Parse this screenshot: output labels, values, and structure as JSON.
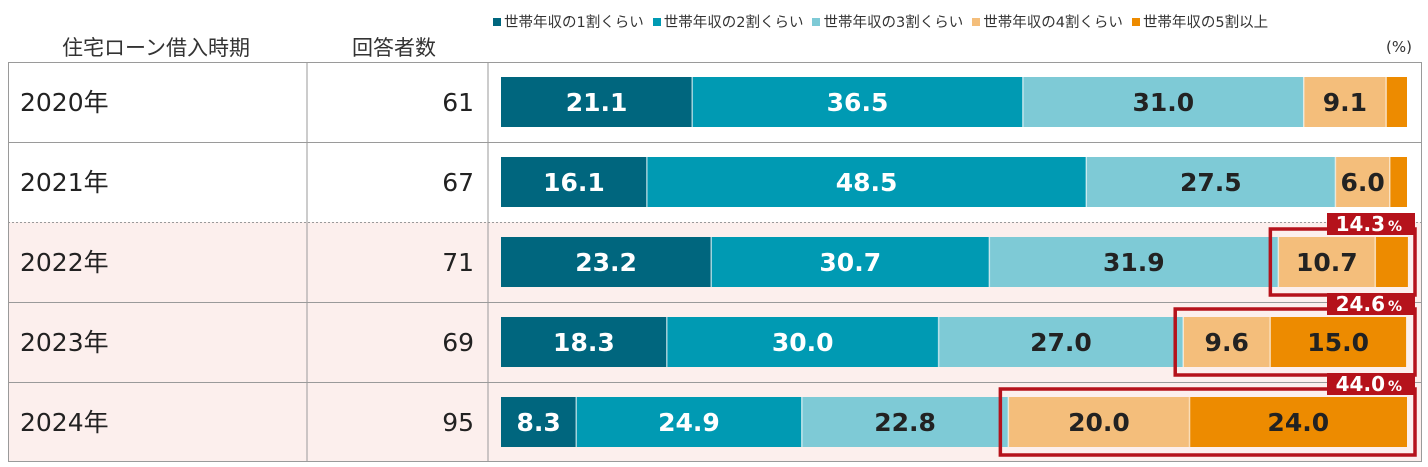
{
  "header": {
    "period_label": "住宅ローン借入時期",
    "count_label": "回答者数",
    "unit": "(%)"
  },
  "colors": {
    "series": [
      "#00667e",
      "#009ab3",
      "#7ecad6",
      "#f4be7b",
      "#ed8b00"
    ],
    "highlight_row_bg": "#fcefed",
    "highlight_box": "#b5121b",
    "grid_line": "#9a9a9a"
  },
  "chart_data": {
    "type": "bar",
    "orientation": "horizontal",
    "stacked": true,
    "categories": [
      "2020年",
      "2021年",
      "2022年",
      "2023年",
      "2024年"
    ],
    "respondents": [
      "61",
      "67",
      "71",
      "69",
      "95"
    ],
    "series": [
      {
        "name": "世帯年収の1割くらい",
        "values": [
          21.1,
          16.1,
          23.2,
          18.3,
          8.3
        ]
      },
      {
        "name": "世帯年収の2割くらい",
        "values": [
          36.5,
          48.5,
          30.7,
          30.0,
          24.9
        ]
      },
      {
        "name": "世帯年収の3割くらい",
        "values": [
          31.0,
          27.5,
          31.9,
          27.0,
          22.8
        ]
      },
      {
        "name": "世帯年収の4割くらい",
        "values": [
          9.1,
          6.0,
          10.7,
          9.6,
          20.0
        ]
      },
      {
        "name": "世帯年収の5割以上",
        "values": [
          2.3,
          1.9,
          3.6,
          15.0,
          24.0
        ]
      }
    ],
    "data_labels": [
      [
        "21.1",
        "36.5",
        "31.0",
        "9.1",
        ""
      ],
      [
        "16.1",
        "48.5",
        "27.5",
        "6.0",
        ""
      ],
      [
        "23.2",
        "30.7",
        "31.9",
        "10.7",
        ""
      ],
      [
        "18.3",
        "30.0",
        "27.0",
        "9.6",
        "15.0"
      ],
      [
        "8.3",
        "24.9",
        "22.8",
        "20.0",
        "24.0"
      ]
    ],
    "highlighted_rows": [
      2,
      3,
      4
    ],
    "annotations": [
      {
        "row": 2,
        "text": "14.3",
        "suffix": "%",
        "from_series": 3
      },
      {
        "row": 3,
        "text": "24.6",
        "suffix": "%",
        "from_series": 3
      },
      {
        "row": 4,
        "text": "44.0",
        "suffix": "%",
        "from_series": 3
      }
    ],
    "xlim": [
      0,
      100
    ]
  }
}
